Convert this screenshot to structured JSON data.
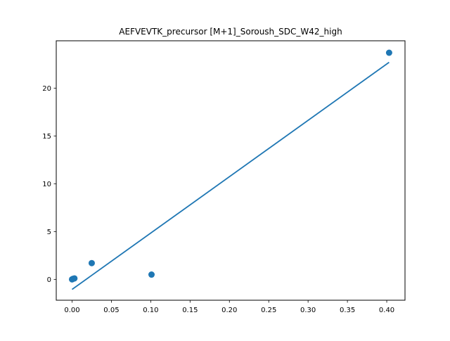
{
  "chart_data": {
    "type": "scatter",
    "title": "AEFVEVTK_precursor [M+1]_Soroush_SDC_W42_high",
    "xlabel": "",
    "ylabel": "",
    "xlim": [
      -0.0201,
      0.4232
    ],
    "ylim": [
      -2.18,
      24.95
    ],
    "x_ticks": [
      0.0,
      0.05,
      0.1,
      0.15,
      0.2,
      0.25,
      0.3,
      0.35,
      0.4
    ],
    "x_tick_labels": [
      "0.00",
      "0.05",
      "0.10",
      "0.15",
      "0.20",
      "0.25",
      "0.30",
      "0.35",
      "0.40"
    ],
    "y_ticks": [
      0,
      5,
      10,
      15,
      20
    ],
    "y_tick_labels": [
      "0",
      "5",
      "10",
      "15",
      "20"
    ],
    "grid": false,
    "series": [
      {
        "kind": "points",
        "x": [
          0.0,
          0.001,
          0.003,
          0.025,
          0.101,
          0.403
        ],
        "y": [
          0.0,
          0.05,
          0.1,
          1.7,
          0.5,
          23.7
        ]
      },
      {
        "kind": "fit-line",
        "x": [
          0.0,
          0.403
        ],
        "y": [
          -1.05,
          22.7
        ]
      }
    ],
    "colors": {
      "series": "#1f77b4",
      "axes": "#000000",
      "background": "#ffffff"
    }
  }
}
